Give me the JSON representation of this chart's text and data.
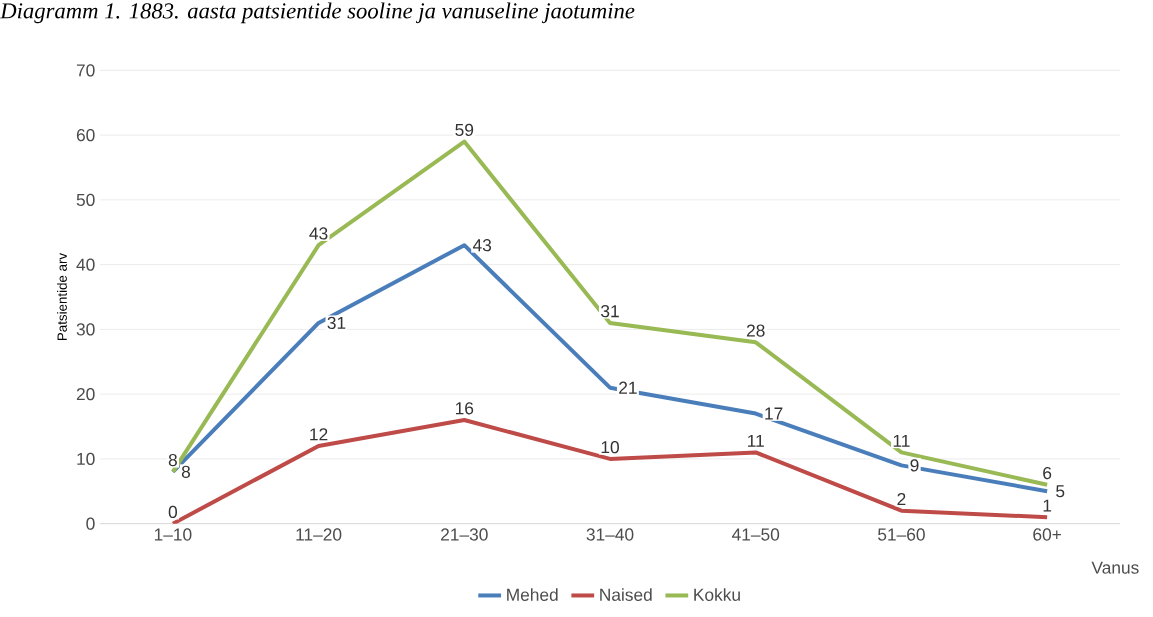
{
  "chart_data": {
    "type": "line",
    "title": "Diagramm 1. 1883. aasta patsientide sooline ja vanuseline jaotumine",
    "xlabel": "Vanus",
    "ylabel": "Patsientide arv",
    "categories": [
      "1–10",
      "11–20",
      "21–30",
      "31–40",
      "41–50",
      "51–60",
      "60+"
    ],
    "series": [
      {
        "name": "Mehed",
        "color": "#4a7ebb",
        "values": [
          8,
          31,
          43,
          21,
          17,
          9,
          5
        ]
      },
      {
        "name": "Naised",
        "color": "#be4b48",
        "values": [
          0,
          12,
          16,
          10,
          11,
          2,
          1
        ]
      },
      {
        "name": "Kokku",
        "color": "#98b954",
        "values": [
          8,
          43,
          59,
          31,
          28,
          11,
          6
        ]
      }
    ],
    "ylim": [
      0,
      70
    ],
    "yticks": [
      0,
      10,
      20,
      30,
      40,
      50,
      60,
      70
    ],
    "grid": "y",
    "legend": "bottom",
    "data_labels": true,
    "marker": "none",
    "line_style": "solid"
  }
}
